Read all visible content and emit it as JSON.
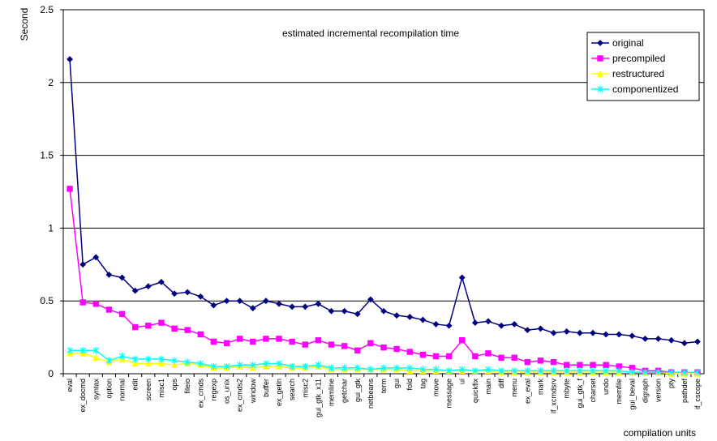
{
  "chart_data": {
    "type": "line",
    "title": "estimated incremental recompilation time",
    "y_label": "Second",
    "x_label": "compilation units",
    "categories": [
      "eval",
      "ex_docmd",
      "syntax",
      "option",
      "normal",
      "edit",
      "screen",
      "misc1",
      "ops",
      "fileio",
      "ex_cmds",
      "regexp",
      "os_unix",
      "ex_cmds2",
      "window",
      "buffer",
      "ex_getln",
      "search",
      "misc2",
      "gui_gtk_x11",
      "memline",
      "getchar",
      "gui_gtk",
      "netbeans",
      "term",
      "gui",
      "fold",
      "tag",
      "move",
      "message",
      "ui",
      "quickfix",
      "main",
      "diff",
      "menu",
      "ex_eval",
      "mark",
      "if_xcmdsrv",
      "mbyte",
      "gui_gtk_f",
      "charset",
      "undo",
      "memfile",
      "gui_beval",
      "digraph",
      "version",
      "pty",
      "pathdef",
      "if_cscope"
    ],
    "series": [
      {
        "name": "original",
        "color": "#000080",
        "marker": "diamond",
        "values": [
          2.16,
          0.75,
          0.8,
          0.68,
          0.66,
          0.57,
          0.6,
          0.63,
          0.55,
          0.56,
          0.53,
          0.47,
          0.5,
          0.5,
          0.45,
          0.5,
          0.48,
          0.46,
          0.46,
          0.48,
          0.43,
          0.43,
          0.41,
          0.51,
          0.43,
          0.4,
          0.39,
          0.37,
          0.34,
          0.33,
          0.66,
          0.35,
          0.36,
          0.33,
          0.34,
          0.3,
          0.31,
          0.28,
          0.29,
          0.28,
          0.28,
          0.27,
          0.27,
          0.26,
          0.24,
          0.24,
          0.23,
          0.21,
          0.22
        ]
      },
      {
        "name": "precompiled",
        "color": "#ff00ff",
        "marker": "square",
        "values": [
          1.27,
          0.49,
          0.48,
          0.44,
          0.41,
          0.32,
          0.33,
          0.35,
          0.31,
          0.3,
          0.27,
          0.22,
          0.21,
          0.24,
          0.22,
          0.24,
          0.24,
          0.22,
          0.2,
          0.23,
          0.2,
          0.19,
          0.16,
          0.21,
          0.18,
          0.17,
          0.15,
          0.13,
          0.12,
          0.12,
          0.23,
          0.12,
          0.14,
          0.11,
          0.11,
          0.08,
          0.09,
          0.08,
          0.06,
          0.06,
          0.06,
          0.06,
          0.05,
          0.04,
          0.02,
          0.02,
          0.01,
          0.01,
          0.01
        ]
      },
      {
        "name": "restructured",
        "color": "#ffff00",
        "marker": "triangle",
        "values": [
          0.14,
          0.14,
          0.11,
          0.08,
          0.1,
          0.07,
          0.07,
          0.07,
          0.06,
          0.07,
          0.06,
          0.04,
          0.04,
          0.05,
          0.04,
          0.05,
          0.05,
          0.04,
          0.04,
          0.05,
          0.03,
          0.03,
          0.03,
          0.03,
          0.03,
          0.03,
          0.02,
          0.02,
          0.02,
          0.02,
          0.02,
          0.02,
          0.02,
          0.01,
          0.01,
          0.01,
          0.01,
          0.01,
          0.01,
          0.01,
          0.01,
          0.01,
          0.01,
          0.01,
          0.01,
          0.01,
          0,
          0,
          0
        ]
      },
      {
        "name": "componentized",
        "color": "#00ffff",
        "marker": "x",
        "values": [
          0.16,
          0.16,
          0.16,
          0.09,
          0.12,
          0.1,
          0.1,
          0.1,
          0.09,
          0.08,
          0.07,
          0.05,
          0.05,
          0.06,
          0.06,
          0.07,
          0.07,
          0.05,
          0.05,
          0.06,
          0.04,
          0.04,
          0.04,
          0.03,
          0.04,
          0.04,
          0.04,
          0.03,
          0.03,
          0.02,
          0.03,
          0.02,
          0.03,
          0.02,
          0.02,
          0.02,
          0.02,
          0.02,
          0.02,
          0.02,
          0.02,
          0.02,
          0.02,
          0.01,
          0.01,
          0.01,
          0.01,
          0.01,
          0.01
        ]
      }
    ],
    "ylim": [
      0,
      2.5
    ],
    "yticks": [
      0,
      0.5,
      1,
      1.5,
      2,
      2.5
    ],
    "grid": true,
    "legend": "upper right"
  }
}
